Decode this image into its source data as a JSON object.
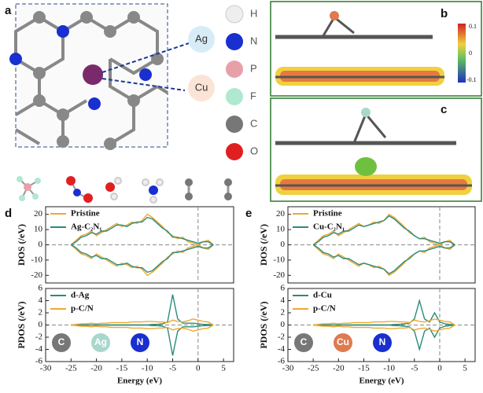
{
  "figure": {
    "panel_labels": [
      "a",
      "b",
      "c",
      "d",
      "e"
    ],
    "metals": [
      "Ag",
      "Cu"
    ],
    "elements": [
      "H",
      "N",
      "P",
      "F",
      "C",
      "O"
    ],
    "colorbar_ticks": [
      0.1,
      0,
      -0.1
    ]
  },
  "chart_data": [
    {
      "type": "line",
      "ylabel": "DOS (/eV)",
      "x": [
        -25,
        -24,
        -23,
        -22,
        -21,
        -20,
        -19,
        -18,
        -17,
        -16,
        -15,
        -14,
        -13,
        -12,
        -11,
        -10,
        -9,
        -8,
        -7,
        -6,
        -5,
        -4,
        -3,
        -2,
        -1,
        0,
        1,
        2,
        3
      ],
      "series": [
        {
          "name": "Pristine",
          "color": "#f0a830",
          "values": [
            0,
            3,
            6,
            7,
            9,
            6,
            8,
            10,
            12,
            14,
            12,
            13,
            15,
            14,
            16,
            20,
            18,
            15,
            12,
            8,
            6,
            4,
            5,
            2,
            1,
            0,
            2,
            3,
            0
          ],
          "values_down": [
            0,
            -3,
            -6,
            -7,
            -9,
            -6,
            -8,
            -10,
            -12,
            -14,
            -12,
            -13,
            -15,
            -14,
            -16,
            -20,
            -18,
            -15,
            -12,
            -8,
            -6,
            -4,
            -5,
            -2,
            -1,
            0,
            -2,
            -3,
            0
          ]
        },
        {
          "name": "Ag-C₂N₁",
          "color": "#2a8c7c",
          "values": [
            0,
            2,
            5,
            6,
            8,
            7,
            9,
            9,
            11,
            13,
            13,
            12,
            14,
            15,
            15,
            18,
            17,
            14,
            11,
            9,
            5,
            5,
            4,
            3,
            2,
            1,
            2,
            2,
            0
          ],
          "values_down": [
            0,
            -2,
            -5,
            -6,
            -8,
            -7,
            -9,
            -9,
            -11,
            -13,
            -13,
            -12,
            -14,
            -15,
            -15,
            -18,
            -17,
            -14,
            -11,
            -9,
            -5,
            -5,
            -4,
            -3,
            -2,
            -1,
            -2,
            -2,
            0
          ]
        }
      ],
      "xlim": [
        -30,
        7
      ],
      "ylim": [
        -25,
        25
      ],
      "yticks": [
        -20,
        -10,
        0,
        10,
        20
      ]
    },
    {
      "type": "line",
      "ylabel": "PDOS (/eV)",
      "xlabel": "Energy (eV)",
      "x": [
        -25,
        -24,
        -23,
        -22,
        -21,
        -20,
        -19,
        -18,
        -17,
        -16,
        -15,
        -14,
        -13,
        -12,
        -11,
        -10,
        -9,
        -8,
        -7,
        -6,
        -5,
        -4,
        -3,
        -2,
        -1,
        0,
        1,
        2,
        3
      ],
      "series": [
        {
          "name": "d-Ag",
          "color": "#2a8c7c",
          "values": [
            0,
            0,
            0,
            0,
            0,
            0,
            0,
            0,
            0,
            0,
            0,
            0,
            0,
            0,
            0,
            0,
            0.1,
            0.1,
            0.2,
            0.5,
            5,
            1,
            0.3,
            0.3,
            0.3,
            0.2,
            0.1,
            0.1,
            0
          ],
          "values_down": [
            0,
            0,
            0,
            0,
            0,
            0,
            0,
            0,
            0,
            0,
            0,
            0,
            0,
            0,
            0,
            0,
            -0.1,
            -0.1,
            -0.2,
            -0.5,
            -5,
            -1,
            -0.3,
            -0.3,
            -0.3,
            -0.2,
            -0.1,
            -0.1,
            0
          ]
        },
        {
          "name": "p-C/N",
          "color": "#f0a830",
          "values": [
            0,
            0.1,
            0.2,
            0.2,
            0.3,
            0.2,
            0.3,
            0.3,
            0.4,
            0.4,
            0.4,
            0.4,
            0.5,
            0.5,
            0.5,
            0.6,
            0.6,
            0.5,
            0.5,
            0.4,
            0.8,
            0.6,
            0.5,
            0.7,
            1,
            0.8,
            0.6,
            0.5,
            0
          ],
          "values_down": [
            0,
            -0.1,
            -0.2,
            -0.2,
            -0.3,
            -0.2,
            -0.3,
            -0.3,
            -0.4,
            -0.4,
            -0.4,
            -0.4,
            -0.5,
            -0.5,
            -0.5,
            -0.6,
            -0.6,
            -0.5,
            -0.5,
            -0.4,
            -0.8,
            -0.6,
            -0.5,
            -0.7,
            -1,
            -0.8,
            -0.6,
            -0.5,
            0
          ]
        }
      ],
      "annotations": [
        {
          "text": "C",
          "color": "#777777"
        },
        {
          "text": "Ag",
          "color": "#a8d8cc"
        },
        {
          "text": "N",
          "color": "#1a2fd0"
        }
      ],
      "xlim": [
        -30,
        7
      ],
      "xticks": [
        -30,
        -25,
        -20,
        -15,
        -10,
        -5,
        0,
        5
      ],
      "ylim": [
        -6,
        6
      ],
      "yticks": [
        -6,
        -4,
        -2,
        0,
        2,
        4,
        6
      ]
    },
    {
      "type": "line",
      "ylabel": "DOS (/eV)",
      "x": [
        -25,
        -24,
        -23,
        -22,
        -21,
        -20,
        -19,
        -18,
        -17,
        -16,
        -15,
        -14,
        -13,
        -12,
        -11,
        -10,
        -9,
        -8,
        -7,
        -6,
        -5,
        -4,
        -3,
        -2,
        -1,
        0,
        1,
        2,
        3
      ],
      "series": [
        {
          "name": "Pristine",
          "color": "#f0a830",
          "values": [
            0,
            3,
            6,
            7,
            9,
            6,
            8,
            10,
            12,
            14,
            12,
            13,
            15,
            14,
            16,
            20,
            18,
            15,
            12,
            8,
            6,
            4,
            5,
            2,
            1,
            0,
            2,
            3,
            0
          ],
          "values_down": [
            0,
            -3,
            -6,
            -7,
            -9,
            -6,
            -8,
            -10,
            -12,
            -14,
            -12,
            -13,
            -15,
            -14,
            -16,
            -20,
            -18,
            -15,
            -12,
            -8,
            -6,
            -4,
            -5,
            -2,
            -1,
            0,
            -2,
            -3,
            0
          ]
        },
        {
          "name": "Cu-C₂N₁",
          "color": "#2a8c7c",
          "values": [
            0,
            2,
            5,
            6,
            8,
            7,
            9,
            9,
            11,
            13,
            12,
            13,
            14,
            15,
            16,
            19,
            17,
            14,
            11,
            9,
            6,
            4,
            4,
            3,
            2,
            1,
            2,
            2,
            0
          ],
          "values_down": [
            0,
            -2,
            -5,
            -6,
            -8,
            -7,
            -9,
            -9,
            -11,
            -13,
            -12,
            -13,
            -14,
            -15,
            -16,
            -19,
            -17,
            -14,
            -11,
            -9,
            -6,
            -4,
            -4,
            -3,
            -2,
            -1,
            -2,
            -2,
            0
          ]
        }
      ],
      "xlim": [
        -30,
        7
      ],
      "ylim": [
        -25,
        25
      ],
      "yticks": [
        -20,
        -10,
        0,
        10,
        20
      ]
    },
    {
      "type": "line",
      "ylabel": "PDOS (/eV)",
      "xlabel": "Energy (eV)",
      "x": [
        -25,
        -24,
        -23,
        -22,
        -21,
        -20,
        -19,
        -18,
        -17,
        -16,
        -15,
        -14,
        -13,
        -12,
        -11,
        -10,
        -9,
        -8,
        -7,
        -6,
        -5,
        -4,
        -3,
        -2,
        -1,
        0,
        1,
        2,
        3
      ],
      "series": [
        {
          "name": "d-Cu",
          "color": "#2a8c7c",
          "values": [
            0,
            0,
            0,
            0,
            0,
            0,
            0,
            0,
            0,
            0,
            0,
            0,
            0,
            0,
            0,
            0,
            0.1,
            0.1,
            0.2,
            0.3,
            1,
            4,
            1,
            0.5,
            2,
            0.5,
            0.2,
            0.1,
            0
          ],
          "values_down": [
            0,
            0,
            0,
            0,
            0,
            0,
            0,
            0,
            0,
            0,
            0,
            0,
            0,
            0,
            0,
            0,
            -0.1,
            -0.1,
            -0.2,
            -0.3,
            -1,
            -4,
            -1,
            -0.5,
            -2,
            -0.5,
            -0.2,
            -0.1,
            0
          ]
        },
        {
          "name": "p-C/N",
          "color": "#f0a830",
          "values": [
            0,
            0.1,
            0.2,
            0.2,
            0.3,
            0.2,
            0.3,
            0.3,
            0.4,
            0.4,
            0.4,
            0.4,
            0.5,
            0.5,
            0.5,
            0.6,
            0.6,
            0.5,
            0.5,
            0.4,
            0.8,
            0.6,
            0.5,
            0.7,
            1,
            0.8,
            0.6,
            0.5,
            0
          ],
          "values_down": [
            0,
            -0.1,
            -0.2,
            -0.2,
            -0.3,
            -0.2,
            -0.3,
            -0.3,
            -0.4,
            -0.4,
            -0.4,
            -0.4,
            -0.5,
            -0.5,
            -0.5,
            -0.6,
            -0.6,
            -0.5,
            -0.5,
            -0.4,
            -0.8,
            -0.6,
            -0.5,
            -0.7,
            -1,
            -0.8,
            -0.6,
            -0.5,
            0
          ]
        }
      ],
      "annotations": [
        {
          "text": "C",
          "color": "#777777"
        },
        {
          "text": "Cu",
          "color": "#e07a50"
        },
        {
          "text": "N",
          "color": "#1a2fd0"
        }
      ],
      "xlim": [
        -30,
        7
      ],
      "xticks": [
        -30,
        -25,
        -20,
        -15,
        -10,
        -5,
        0,
        5
      ],
      "ylim": [
        -6,
        6
      ],
      "yticks": [
        -6,
        -4,
        -2,
        0,
        2,
        4,
        6
      ]
    }
  ]
}
